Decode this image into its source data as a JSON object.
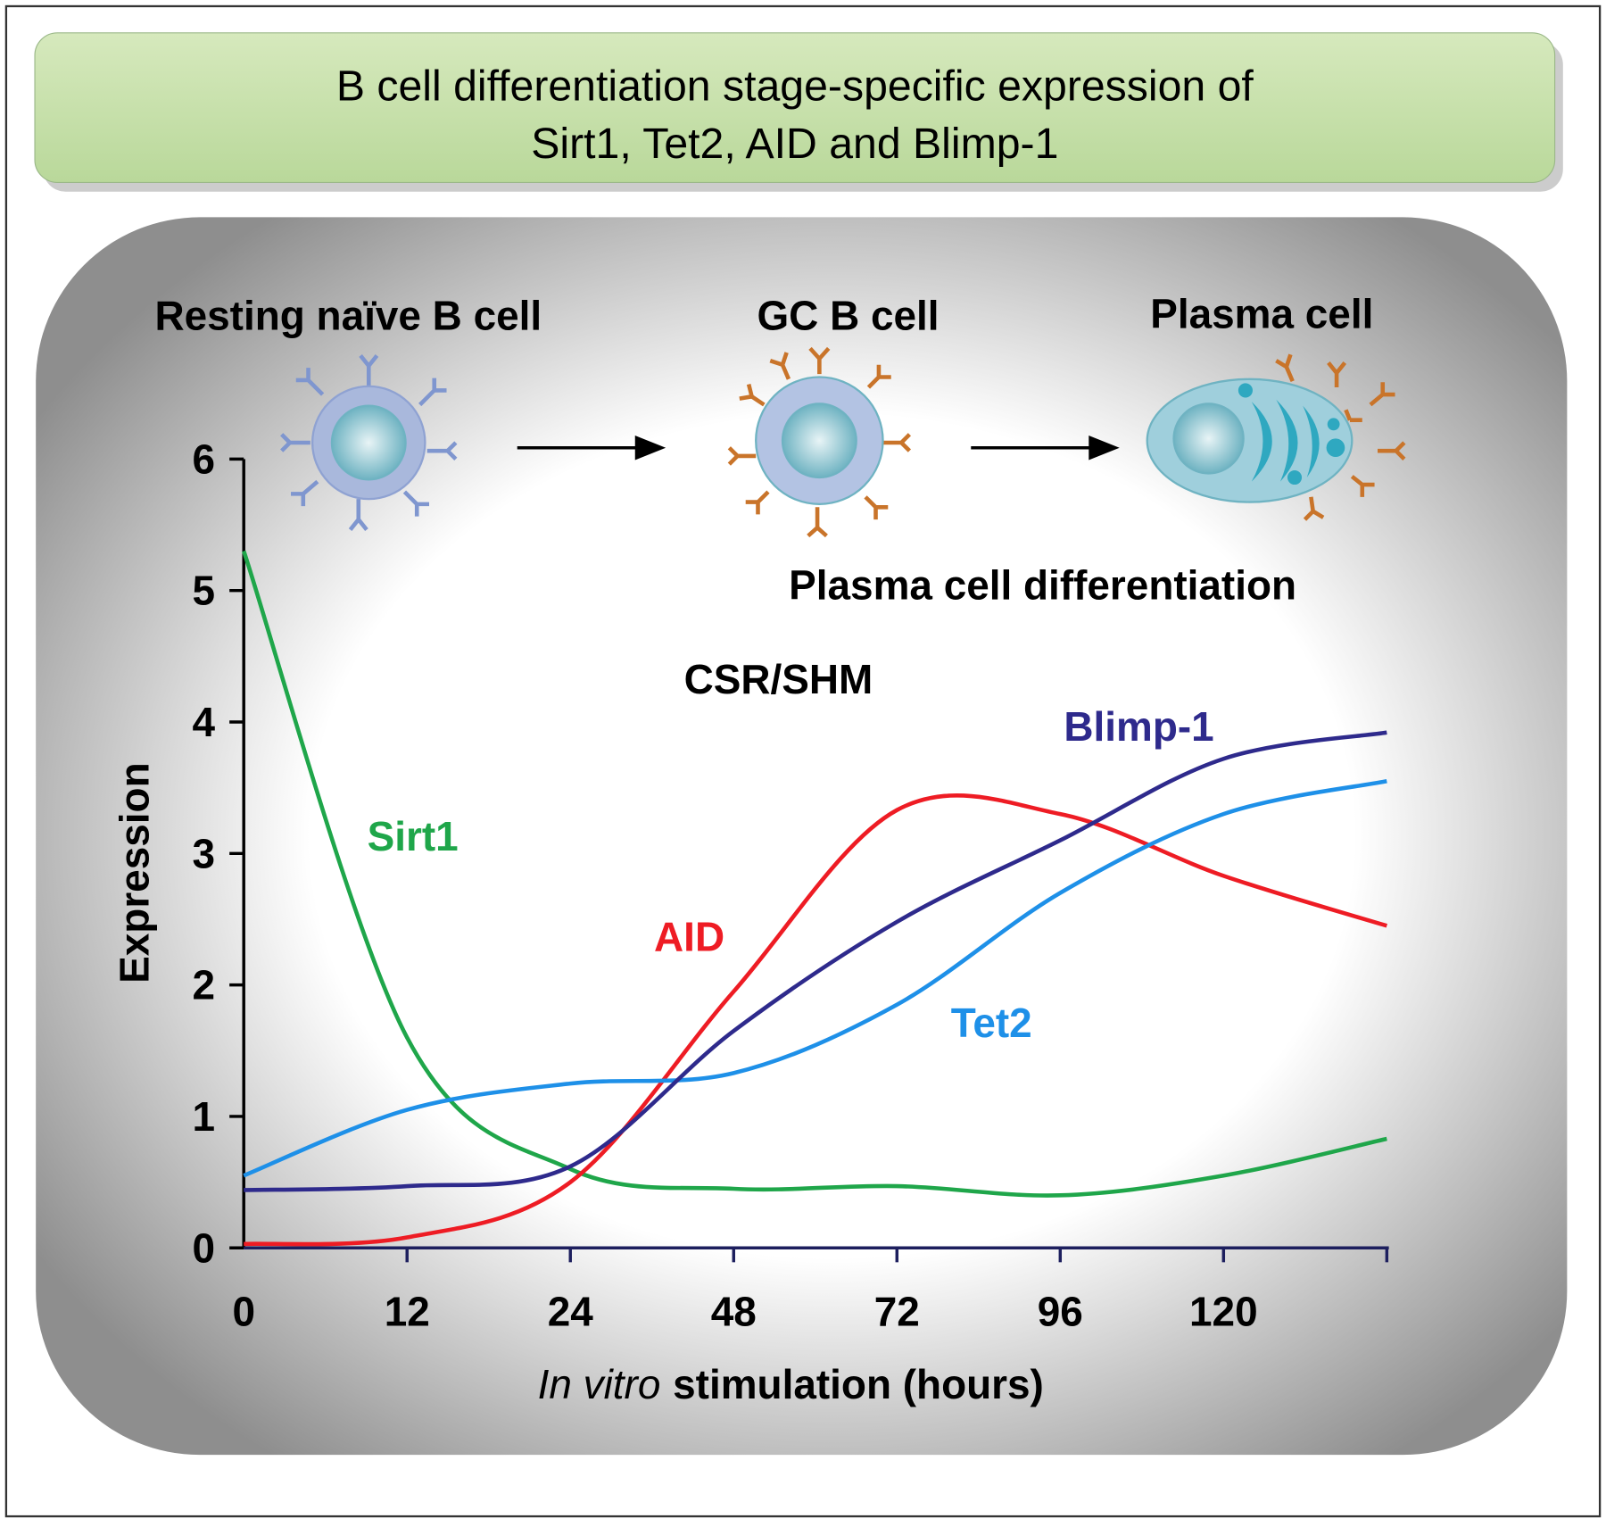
{
  "chart_data": {
    "type": "line",
    "title": [
      "B cell differentiation stage-specific expression of",
      "Sirt1, Tet2, AID and Blimp-1"
    ],
    "stages": [
      "Resting naïve B cell",
      "GC B cell",
      "Plasma cell"
    ],
    "annotations": [
      "Plasma cell differentiation",
      "CSR/SHM"
    ],
    "ylabel": "Expression",
    "xlabel": {
      "italic": "In vitro",
      "text": "stimulation (hours)"
    },
    "categories": [
      "0",
      "12",
      "24",
      "48",
      "72",
      "96",
      "120",
      null
    ],
    "ylim": [
      0,
      6
    ],
    "yticks": [
      0,
      1,
      2,
      3,
      4,
      5,
      6
    ],
    "series": [
      {
        "name": "Sirt1",
        "color": "#1fa64a",
        "values": [
          5.3,
          1.6,
          0.6,
          0.45,
          0.47,
          0.4,
          0.55,
          0.83
        ]
      },
      {
        "name": "AID",
        "color": "#ee1c24",
        "values": [
          0.03,
          0.08,
          0.5,
          1.95,
          3.33,
          3.3,
          2.83,
          2.45
        ]
      },
      {
        "name": "Tet2",
        "color": "#1e90e8",
        "values": [
          0.55,
          1.05,
          1.25,
          1.33,
          1.85,
          2.7,
          3.3,
          3.55
        ]
      },
      {
        "name": "Blimp-1",
        "color": "#2e2a8c",
        "values": [
          0.44,
          0.47,
          0.62,
          1.65,
          2.48,
          3.1,
          3.72,
          3.92
        ]
      }
    ]
  }
}
